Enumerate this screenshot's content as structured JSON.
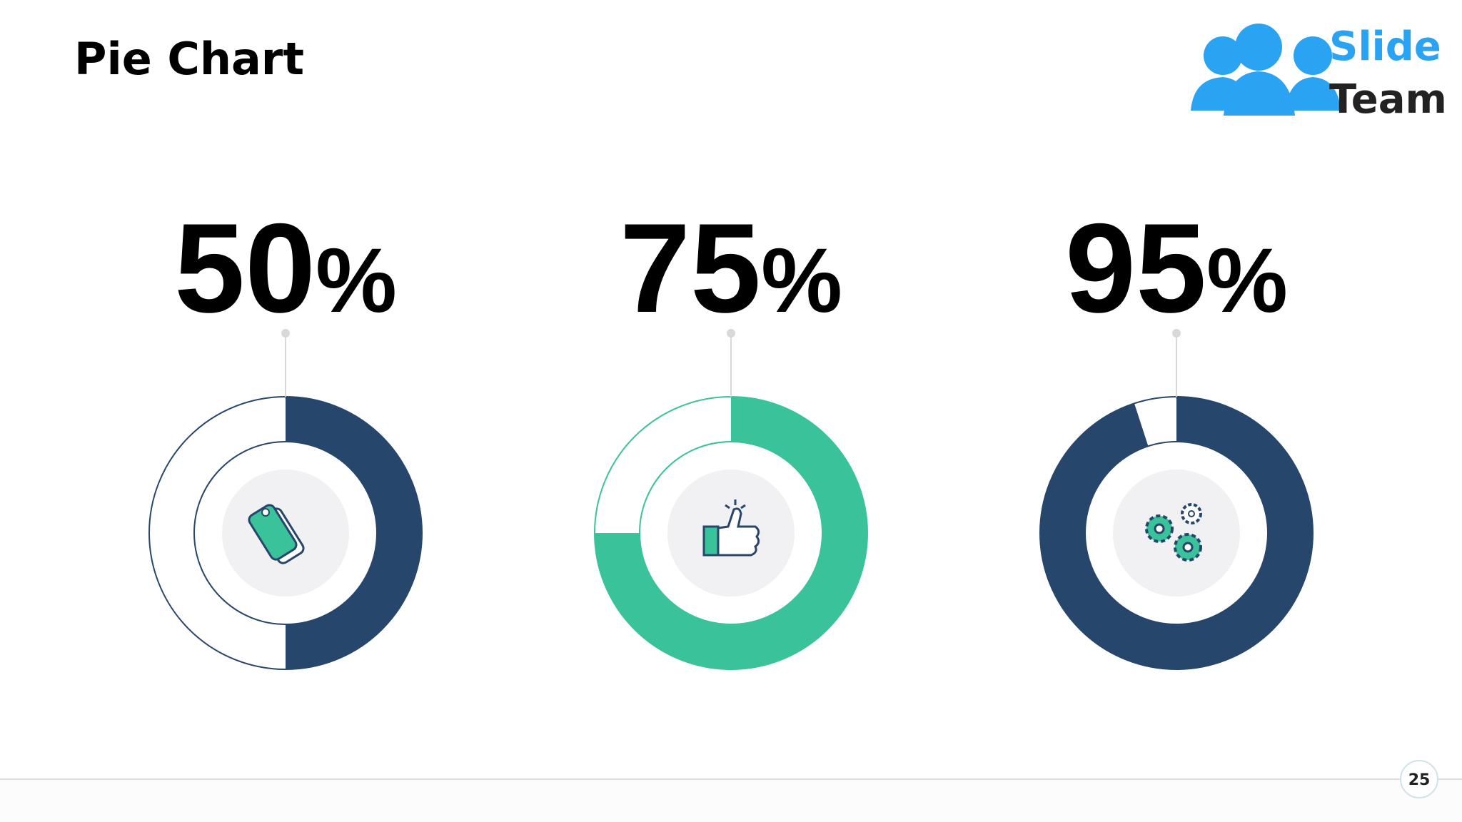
{
  "title": "Pie Chart",
  "logo": {
    "line1": "Slide",
    "line2": "Team"
  },
  "page_number": "25",
  "chart_data": [
    {
      "type": "donut",
      "values": [
        50
      ],
      "value_labels": [
        "50%"
      ],
      "color": "#27466b"
    },
    {
      "type": "donut",
      "values": [
        75
      ],
      "value_labels": [
        "75%"
      ],
      "color": "#3ac29a"
    },
    {
      "type": "donut",
      "values": [
        95
      ],
      "value_labels": [
        "95%"
      ],
      "color": "#27466b"
    }
  ]
}
